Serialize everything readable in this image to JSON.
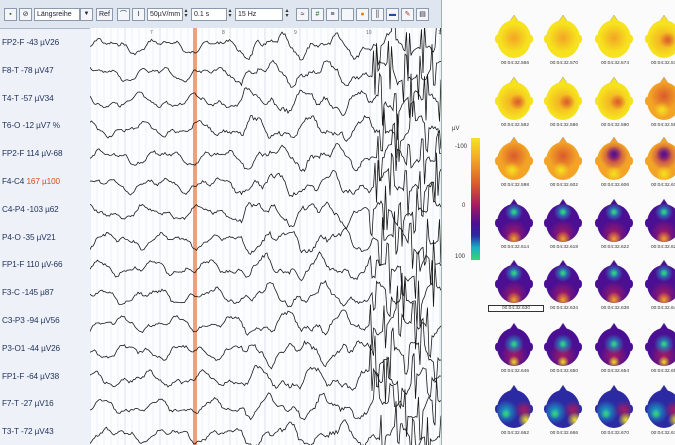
{
  "toolbar": {
    "montage": "Längsreihe",
    "ref": "Ref",
    "sensitivity": "50µV/mm",
    "time_constant": "0.1 s",
    "filter": "15 Hz"
  },
  "channels": [
    {
      "name": "FP2-F",
      "v1": "-43",
      "v2": "µV26",
      "highlight": false
    },
    {
      "name": "F8-T",
      "v1": "-78",
      "v2": "µV47",
      "highlight": false
    },
    {
      "name": "T4-T",
      "v1": "-57",
      "v2": "µV34",
      "highlight": false
    },
    {
      "name": "T6-O",
      "v1": "-12",
      "v2": "µV7 %",
      "highlight": false
    },
    {
      "name": "FP2-F",
      "v1": "114",
      "v2": "µV-68",
      "highlight": false
    },
    {
      "name": "F4-C4",
      "v1": "167",
      "v2": "µ100",
      "highlight": true
    },
    {
      "name": "C4-P4",
      "v1": "-103",
      "v2": "µ62",
      "highlight": false
    },
    {
      "name": "P4-O",
      "v1": "-35",
      "v2": "µV21",
      "highlight": false
    },
    {
      "name": "FP1-F",
      "v1": "110",
      "v2": "µV-66",
      "highlight": false
    },
    {
      "name": "F3-C",
      "v1": "-145",
      "v2": "µ87",
      "highlight": false
    },
    {
      "name": "C3-P3",
      "v1": "-94",
      "v2": "µV56",
      "highlight": false
    },
    {
      "name": "P3-O1",
      "v1": "-44",
      "v2": "µV26",
      "highlight": false
    },
    {
      "name": "FP1-F",
      "v1": "-64",
      "v2": "µV38",
      "highlight": false
    },
    {
      "name": "F7-T",
      "v1": "-27",
      "v2": "µV16",
      "highlight": false
    },
    {
      "name": "T3-T",
      "v1": "-72",
      "v2": "µV43",
      "highlight": false
    }
  ],
  "second_markers": [
    "7",
    "8",
    "9",
    "10",
    "11"
  ],
  "colorbar": {
    "unit": "µV",
    "ticks": [
      "-100",
      "0",
      "100"
    ],
    "colors": [
      "#f6e21e",
      "#f3a426",
      "#d95a2c",
      "#a81b61",
      "#4b0f93",
      "#2b2aa3",
      "#17b0c7",
      "#3bd66c"
    ]
  },
  "topo_maps": [
    {
      "time": "00:04:32.566",
      "pattern": "warm-1",
      "selected": false
    },
    {
      "time": "00:04:32.570",
      "pattern": "warm-1",
      "selected": false
    },
    {
      "time": "00:04:32.574",
      "pattern": "warm-1",
      "selected": false
    },
    {
      "time": "00:04:32.578",
      "pattern": "warm-2",
      "selected": false
    },
    {
      "time": "00:04:32.582",
      "pattern": "warm-2",
      "selected": false
    },
    {
      "time": "00:04:32.586",
      "pattern": "warm-2",
      "selected": false
    },
    {
      "time": "00:04:32.590",
      "pattern": "warm-2",
      "selected": false
    },
    {
      "time": "00:04:32.594",
      "pattern": "warm-3",
      "selected": false
    },
    {
      "time": "00:04:32.598",
      "pattern": "warm-3",
      "selected": false
    },
    {
      "time": "00:04:32.602",
      "pattern": "warm-3",
      "selected": false
    },
    {
      "time": "00:04:32.606",
      "pattern": "mixed",
      "selected": false
    },
    {
      "time": "00:04:32.610",
      "pattern": "mixed",
      "selected": false
    },
    {
      "time": "00:04:32.614",
      "pattern": "front-neg",
      "selected": false
    },
    {
      "time": "00:04:32.618",
      "pattern": "front-neg",
      "selected": false
    },
    {
      "time": "00:04:32.622",
      "pattern": "front-neg",
      "selected": false
    },
    {
      "time": "00:04:32.626",
      "pattern": "front-neg",
      "selected": false
    },
    {
      "time": "00:04:32.630",
      "pattern": "front-neg",
      "selected": true
    },
    {
      "time": "00:04:32.634",
      "pattern": "front-neg",
      "selected": false
    },
    {
      "time": "00:04:32.638",
      "pattern": "front-neg",
      "selected": false
    },
    {
      "time": "00:04:32.642",
      "pattern": "front-neg",
      "selected": false
    },
    {
      "time": "00:04:32.646",
      "pattern": "center-neg",
      "selected": false
    },
    {
      "time": "00:04:32.650",
      "pattern": "center-neg",
      "selected": false
    },
    {
      "time": "00:04:32.654",
      "pattern": "center-neg",
      "selected": false
    },
    {
      "time": "00:04:32.658",
      "pattern": "center-neg",
      "selected": false
    },
    {
      "time": "00:04:32.662",
      "pattern": "left-neg",
      "selected": false
    },
    {
      "time": "00:04:32.666",
      "pattern": "left-neg",
      "selected": false
    },
    {
      "time": "00:04:32.670",
      "pattern": "left-neg",
      "selected": false
    },
    {
      "time": "00:04:32.674",
      "pattern": "left-neg",
      "selected": false
    }
  ]
}
